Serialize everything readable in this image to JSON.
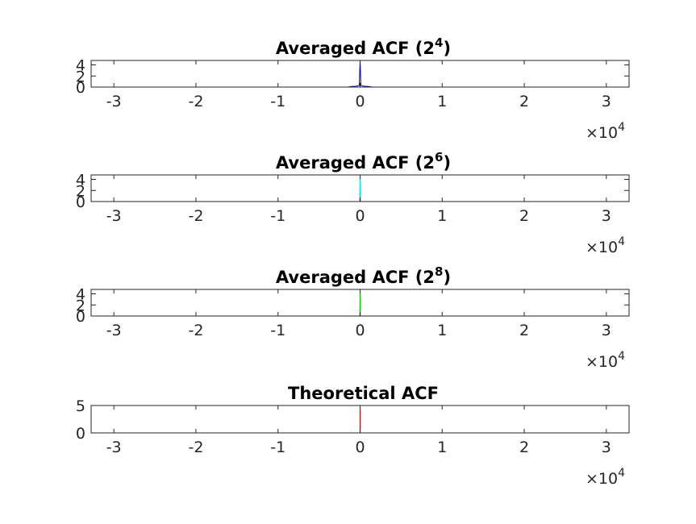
{
  "chart_data": [
    {
      "type": "line",
      "title": "Averaged ACF (2",
      "title_sup": "4",
      "title_close": ")",
      "color": "#0000bf",
      "xlim": [
        -32768,
        32768
      ],
      "ylim": [
        0,
        4.8
      ],
      "xticks": [
        -30000,
        -20000,
        -10000,
        0,
        10000,
        20000,
        30000
      ],
      "xtick_labels": [
        "-3",
        "-2",
        "-1",
        "0",
        "1",
        "2",
        "3"
      ],
      "yticks": [
        0,
        2,
        4
      ],
      "ytick_labels": [
        "0",
        "2",
        "4"
      ],
      "exponent_base": "×10",
      "exponent_power": "4",
      "series": [
        {
          "x": [
            -32768,
            -1500,
            -1000,
            -500,
            -100,
            0,
            100,
            500,
            1000,
            1500,
            32768
          ],
          "y": [
            0,
            0,
            0.1,
            0.15,
            0.3,
            4.8,
            0.3,
            0.15,
            0.1,
            0,
            0
          ]
        }
      ]
    },
    {
      "type": "line",
      "title": "Averaged ACF (2",
      "title_sup": "6",
      "title_close": ")",
      "color": "#00dfdf",
      "xlim": [
        -32768,
        32768
      ],
      "ylim": [
        0,
        4.8
      ],
      "xticks": [
        -30000,
        -20000,
        -10000,
        0,
        10000,
        20000,
        30000
      ],
      "xtick_labels": [
        "-3",
        "-2",
        "-1",
        "0",
        "1",
        "2",
        "3"
      ],
      "yticks": [
        0,
        2,
        4
      ],
      "ytick_labels": [
        "0",
        "2",
        "4"
      ],
      "exponent_base": "×10",
      "exponent_power": "4",
      "series": [
        {
          "x": [
            -32768,
            -50,
            0,
            50,
            32768
          ],
          "y": [
            0,
            0,
            4.8,
            0,
            0
          ]
        }
      ]
    },
    {
      "type": "line",
      "title": "Averaged ACF (2",
      "title_sup": "8",
      "title_close": ")",
      "color": "#00c800",
      "xlim": [
        -32768,
        32768
      ],
      "ylim": [
        0,
        4.8
      ],
      "xticks": [
        -30000,
        -20000,
        -10000,
        0,
        10000,
        20000,
        30000
      ],
      "xtick_labels": [
        "-3",
        "-2",
        "-1",
        "0",
        "1",
        "2",
        "3"
      ],
      "yticks": [
        0,
        2,
        4
      ],
      "ytick_labels": [
        "0",
        "2",
        "4"
      ],
      "exponent_base": "×10",
      "exponent_power": "4",
      "series": [
        {
          "x": [
            -32768,
            -30,
            0,
            30,
            32768
          ],
          "y": [
            0,
            0,
            4.8,
            0,
            0
          ]
        }
      ]
    },
    {
      "type": "line",
      "title": "Theoretical ACF",
      "title_sup": "",
      "title_close": "",
      "color": "#d40000",
      "xlim": [
        -32768,
        32768
      ],
      "ylim": [
        0,
        5
      ],
      "xticks": [
        -30000,
        -20000,
        -10000,
        0,
        10000,
        20000,
        30000
      ],
      "xtick_labels": [
        "-3",
        "-2",
        "-1",
        "0",
        "1",
        "2",
        "3"
      ],
      "yticks": [
        0,
        5
      ],
      "ytick_labels": [
        "0",
        "5"
      ],
      "exponent_base": "×10",
      "exponent_power": "4",
      "series": [
        {
          "x": [
            -32768,
            -10,
            0,
            10,
            32768
          ],
          "y": [
            0,
            0,
            5,
            0,
            0
          ]
        }
      ]
    }
  ]
}
